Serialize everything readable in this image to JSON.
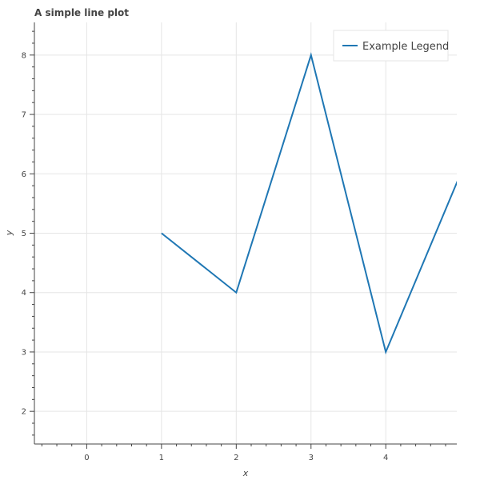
{
  "chart_data": {
    "type": "line",
    "title": "A simple line plot",
    "xlabel": "x",
    "ylabel": "y",
    "xlim": [
      -0.7,
      4.95
    ],
    "ylim": [
      1.45,
      8.55
    ],
    "xticks": [
      "0",
      "1",
      "2",
      "3",
      "4"
    ],
    "yticks": [
      "2",
      "3",
      "4",
      "5",
      "6",
      "7",
      "8"
    ],
    "grid": true,
    "legend_position": "top-right",
    "series": [
      {
        "name": "Example Legend",
        "color": "#1f77b4",
        "x": [
          1,
          2,
          3,
          4,
          5
        ],
        "y": [
          5,
          4,
          8,
          3,
          6
        ]
      }
    ]
  }
}
